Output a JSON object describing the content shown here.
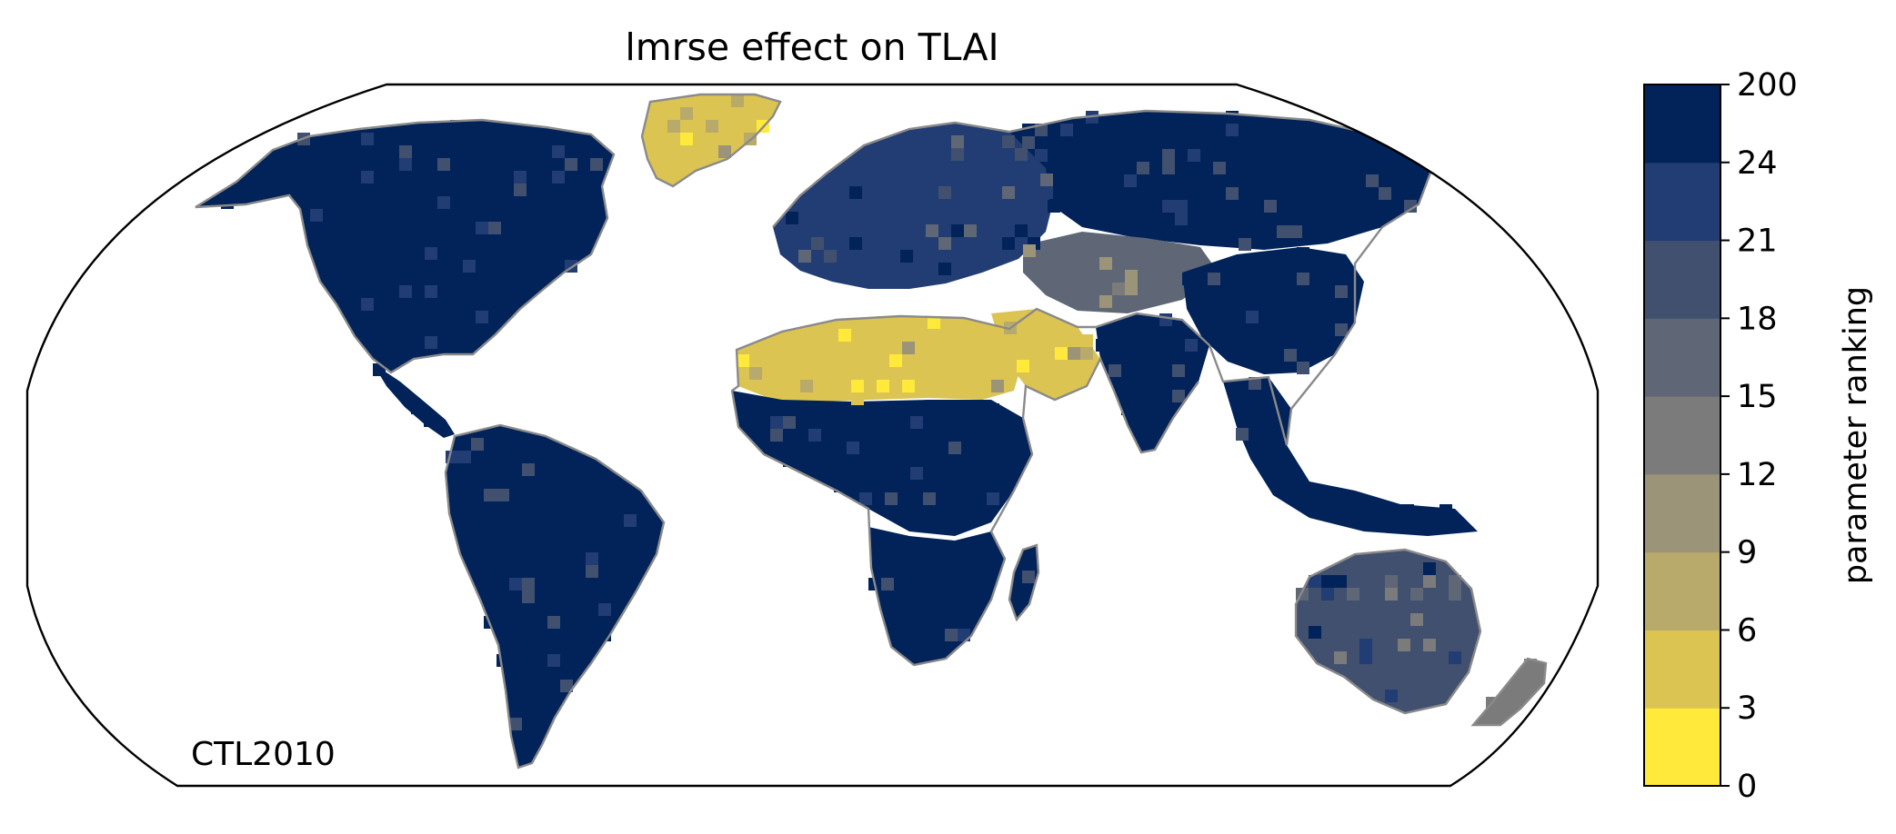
{
  "title": "lmrse effect on TLAI",
  "annotation": "CTL2010",
  "colorbar": {
    "label": "parameter ranking",
    "ticks": [
      "0",
      "3",
      "6",
      "9",
      "12",
      "15",
      "18",
      "21",
      "24",
      "200"
    ],
    "bins": [
      {
        "from": 0,
        "to": 3,
        "color": "#ffe93a"
      },
      {
        "from": 3,
        "to": 6,
        "color": "#dcc452"
      },
      {
        "from": 6,
        "to": 9,
        "color": "#b7aa6a"
      },
      {
        "from": 9,
        "to": 12,
        "color": "#9b9478"
      },
      {
        "from": 12,
        "to": 15,
        "color": "#7b7b7b"
      },
      {
        "from": 15,
        "to": 18,
        "color": "#5f6776"
      },
      {
        "from": 18,
        "to": 21,
        "color": "#41506f"
      },
      {
        "from": 21,
        "to": 24,
        "color": "#223c74"
      },
      {
        "from": 24,
        "to": 200,
        "color": "#012359"
      }
    ]
  },
  "colors": {
    "coastline": "#8a8a8a",
    "frame": "#000000"
  },
  "map_data": {
    "type": "raster",
    "projection": "Robinson",
    "variable": "parameter ranking",
    "regions": [
      {
        "name": "Greenland",
        "value": 4
      },
      {
        "name": "Sahara",
        "value": 4
      },
      {
        "name": "Arabian Peninsula",
        "value": 4
      },
      {
        "name": "North America",
        "value": 25
      },
      {
        "name": "Central America",
        "value": 25
      },
      {
        "name": "South America",
        "value": 25
      },
      {
        "name": "Europe",
        "value": 22
      },
      {
        "name": "Siberia",
        "value": 25
      },
      {
        "name": "Central Asia",
        "value": 16
      },
      {
        "name": "China",
        "value": 25
      },
      {
        "name": "South Asia",
        "value": 25
      },
      {
        "name": "Southeast Asia",
        "value": 25
      },
      {
        "name": "Central Africa",
        "value": 25
      },
      {
        "name": "Southern Africa",
        "value": 25
      },
      {
        "name": "Madagascar",
        "value": 25
      },
      {
        "name": "Australia",
        "value": 19
      },
      {
        "name": "New Zealand",
        "value": 13
      }
    ]
  }
}
